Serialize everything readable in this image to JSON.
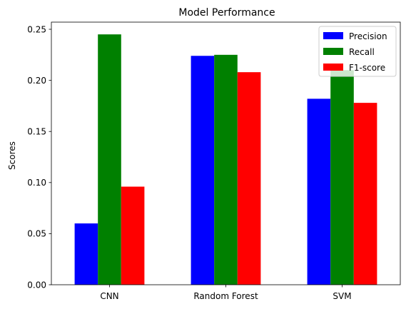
{
  "chart_data": {
    "type": "bar",
    "title": "Model Performance",
    "xlabel": "",
    "ylabel": "Scores",
    "categories": [
      "CNN",
      "Random Forest",
      "SVM"
    ],
    "series": [
      {
        "name": "Precision",
        "color": "#0000ff",
        "values": [
          0.06,
          0.224,
          0.182
        ]
      },
      {
        "name": "Recall",
        "color": "#008000",
        "values": [
          0.245,
          0.225,
          0.21
        ]
      },
      {
        "name": "F1-score",
        "color": "#ff0000",
        "values": [
          0.096,
          0.208,
          0.178
        ]
      }
    ],
    "ylim": [
      0,
      0.257
    ],
    "yticks": [
      0.0,
      0.05,
      0.1,
      0.15,
      0.2,
      0.25
    ],
    "ytick_labels": [
      "0.00",
      "0.05",
      "0.10",
      "0.15",
      "0.20",
      "0.25"
    ],
    "legend": "top-right",
    "grid": false
  }
}
